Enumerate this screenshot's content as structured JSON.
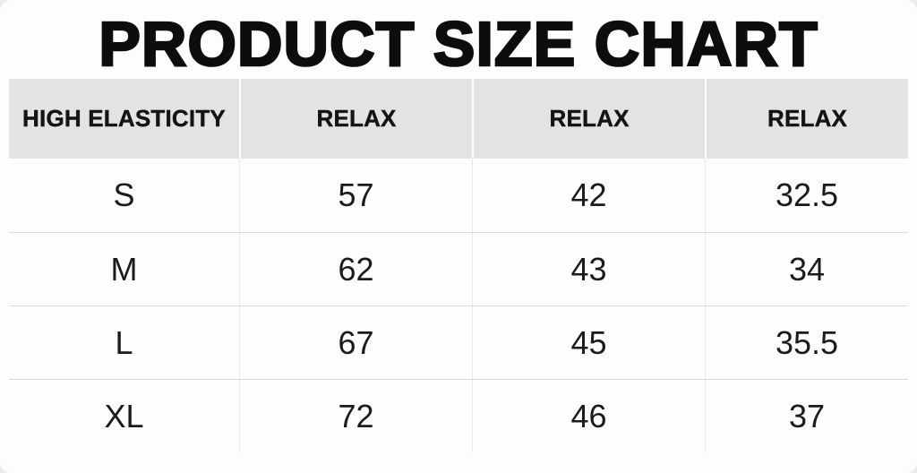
{
  "page": {
    "title": "PRODUCT SIZE CHART"
  },
  "chart_data": {
    "type": "table",
    "title": "PRODUCT SIZE CHART",
    "columns": [
      "HIGH ELASTICITY",
      "RELAX",
      "RELAX",
      "RELAX"
    ],
    "rows": [
      [
        "S",
        "57",
        "42",
        "32.5"
      ],
      [
        "M",
        "62",
        "43",
        "34"
      ],
      [
        "L",
        "67",
        "45",
        "35.5"
      ],
      [
        "XL",
        "72",
        "46",
        "37"
      ]
    ],
    "layout_hints": {
      "first_column_role": "size",
      "value_columns_role": "measurement"
    }
  },
  "colors": {
    "header_bg": "#e4e3e1",
    "header_divider": "#fbfbfa",
    "row_divider": "#d9d9d9",
    "column_divider": "#e8e8e6",
    "card_bg": "#fdfdfd",
    "page_bg": "#ececea",
    "text": "#1b1b1b"
  }
}
